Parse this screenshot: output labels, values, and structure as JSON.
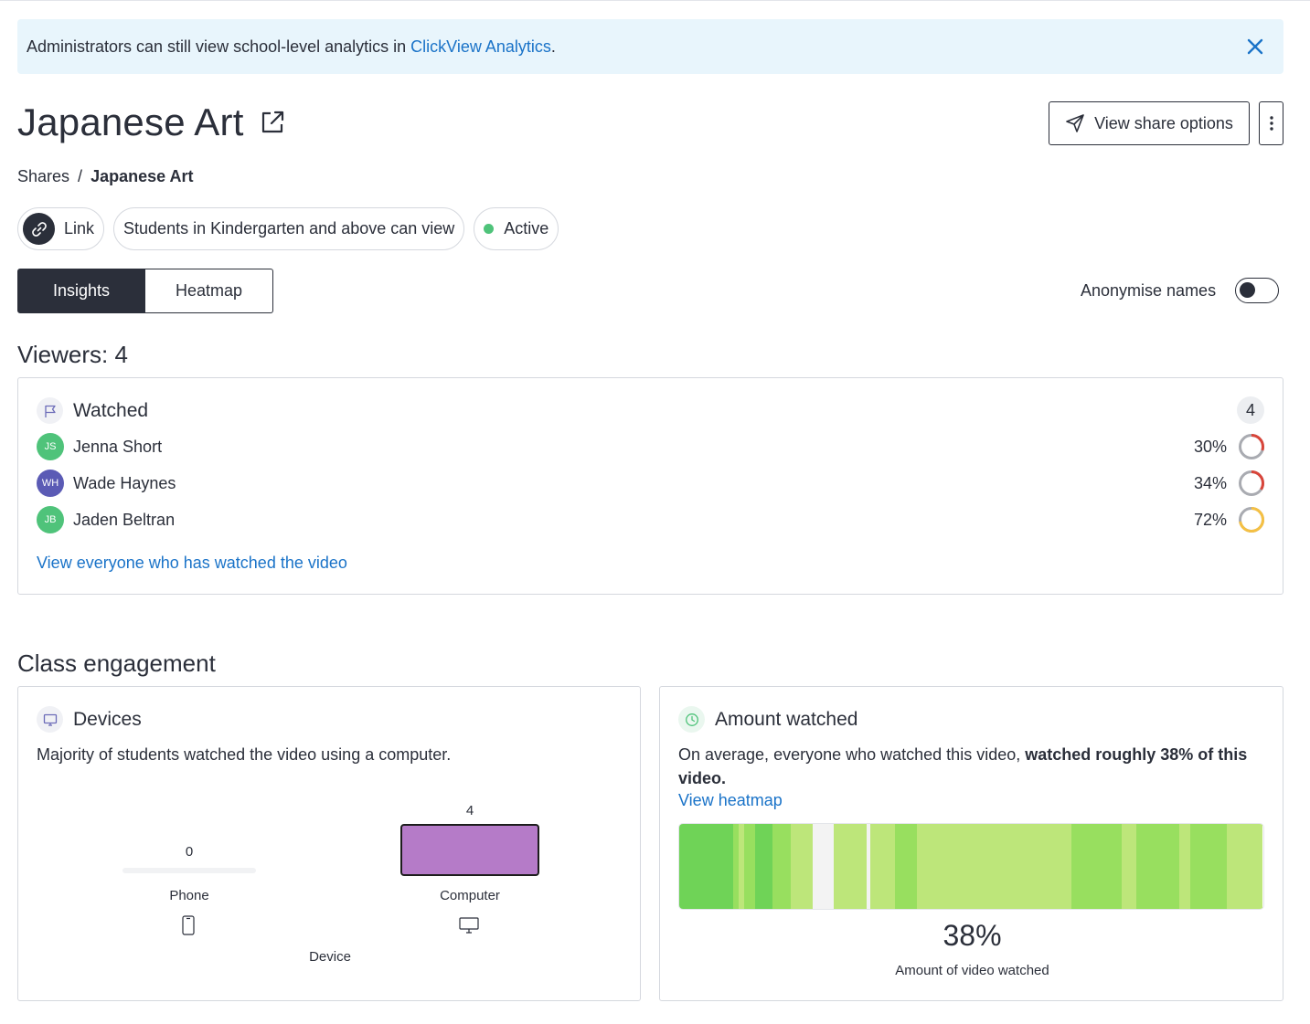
{
  "banner": {
    "text_before": "Administrators can still view school-level analytics in ",
    "link_text": "ClickView Analytics",
    "text_after": "."
  },
  "page": {
    "title": "Japanese Art",
    "share_button_label": "View share options"
  },
  "breadcrumb": {
    "root": "Shares",
    "separator": "/",
    "current": "Japanese Art"
  },
  "chips": {
    "link_label": "Link",
    "audience_label": "Students in Kindergarten and above can view",
    "status_label": "Active",
    "status_color": "#4fc37a"
  },
  "tabs": [
    {
      "label": "Insights",
      "active": true
    },
    {
      "label": "Heatmap",
      "active": false
    }
  ],
  "anonymise": {
    "label": "Anonymise names",
    "enabled": false
  },
  "viewers": {
    "heading": "Viewers: 4",
    "section_title": "Watched",
    "count": "4",
    "list": [
      {
        "initials": "JS",
        "name": "Jenna Short",
        "percent_label": "30%",
        "percent": 30,
        "avatar_color": "#4fc37a",
        "ring_color": "#d9453a"
      },
      {
        "initials": "WH",
        "name": "Wade Haynes",
        "percent_label": "34%",
        "percent": 34,
        "avatar_color": "#5b5bb5",
        "ring_color": "#d9453a"
      },
      {
        "initials": "JB",
        "name": "Jaden Beltran",
        "percent_label": "72%",
        "percent": 72,
        "avatar_color": "#4fc37a",
        "ring_color": "#f5c043"
      }
    ],
    "view_all_link": "View everyone who has watched the video"
  },
  "class_engagement": {
    "heading": "Class engagement",
    "devices": {
      "title": "Devices",
      "description": "Majority of students watched the video using a computer.",
      "axis_label": "Device",
      "bar_color": "#b57bc8",
      "chart_data": {
        "type": "bar",
        "categories": [
          "Phone",
          "Computer"
        ],
        "values": [
          0,
          4
        ],
        "xlabel": "Device",
        "ylabel": ""
      },
      "bars": [
        {
          "label": "Phone",
          "value_label": "0",
          "icon": "phone-icon"
        },
        {
          "label": "Computer",
          "value_label": "4",
          "icon": "monitor-icon"
        }
      ]
    },
    "amount": {
      "title": "Amount watched",
      "description_plain": "On average, everyone who watched this video, ",
      "description_bold": "watched roughly 38% of this video.",
      "link": "View heatmap",
      "value_label": "38%",
      "value_caption": "Amount of video watched",
      "heatmap_levels": [
        3,
        3,
        3,
        3,
        3,
        3,
        3,
        3,
        3,
        3,
        3,
        3,
        3,
        3,
        3,
        3,
        3,
        3,
        3,
        3,
        3,
        3,
        3,
        3,
        3,
        3,
        3,
        3,
        3,
        3,
        2,
        2,
        2,
        1,
        1,
        1,
        2,
        2,
        2,
        2,
        2,
        2,
        3,
        3,
        3,
        3,
        3,
        3,
        3,
        3,
        3,
        3,
        2,
        2,
        2,
        2,
        2,
        2,
        2,
        2,
        2,
        2,
        1,
        1,
        1,
        1,
        1,
        1,
        1,
        1,
        1,
        1,
        1,
        1,
        0,
        0,
        0,
        0,
        0,
        0,
        0,
        0,
        0,
        0,
        0,
        0,
        1,
        1,
        1,
        1,
        1,
        1,
        1,
        1,
        1,
        1,
        1,
        1,
        1,
        1,
        1,
        1,
        1,
        1,
        0,
        0,
        1,
        1,
        1,
        1,
        1,
        1,
        1,
        1,
        1,
        1,
        1,
        1,
        1,
        1,
        2,
        2,
        2,
        2,
        2,
        2,
        2,
        2,
        2,
        2,
        2,
        2,
        1,
        1,
        1,
        1,
        1,
        1,
        1,
        1,
        1,
        1,
        1,
        1,
        1,
        1,
        1,
        1,
        1,
        1,
        1,
        1,
        1,
        1,
        1,
        1,
        1,
        1,
        1,
        1,
        1,
        1,
        1,
        1,
        1,
        1,
        1,
        1,
        1,
        1,
        1,
        1,
        1,
        1,
        1,
        1,
        1,
        1,
        1,
        1,
        1,
        1,
        1,
        1,
        1,
        1,
        1,
        1,
        1,
        1,
        1,
        1,
        1,
        1,
        1,
        1,
        1,
        1,
        1,
        1,
        1,
        1,
        1,
        1,
        1,
        1,
        1,
        1,
        1,
        1,
        1,
        1,
        1,
        1,
        1,
        1,
        1,
        1,
        2,
        2,
        2,
        2,
        2,
        2,
        2,
        2,
        2,
        2,
        2,
        2,
        2,
        2,
        2,
        2,
        2,
        2,
        2,
        2,
        2,
        2,
        2,
        2,
        2,
        2,
        2,
        2,
        1,
        1,
        1,
        1,
        1,
        1,
        1,
        1,
        2,
        2,
        2,
        2,
        2,
        2,
        2,
        2,
        2,
        2,
        2,
        2,
        2,
        2,
        2,
        2,
        2,
        2,
        2,
        2,
        2,
        2,
        2,
        2,
        1,
        1,
        1,
        1,
        1,
        1,
        2,
        2,
        2,
        2,
        2,
        2,
        2,
        2,
        2,
        2,
        2,
        2,
        2,
        2,
        2,
        2,
        2,
        2,
        2,
        2,
        1,
        1,
        1,
        1,
        1,
        1,
        1,
        1,
        1,
        1,
        1,
        1,
        1,
        1,
        1,
        1,
        1,
        1,
        1,
        1
      ]
    }
  }
}
